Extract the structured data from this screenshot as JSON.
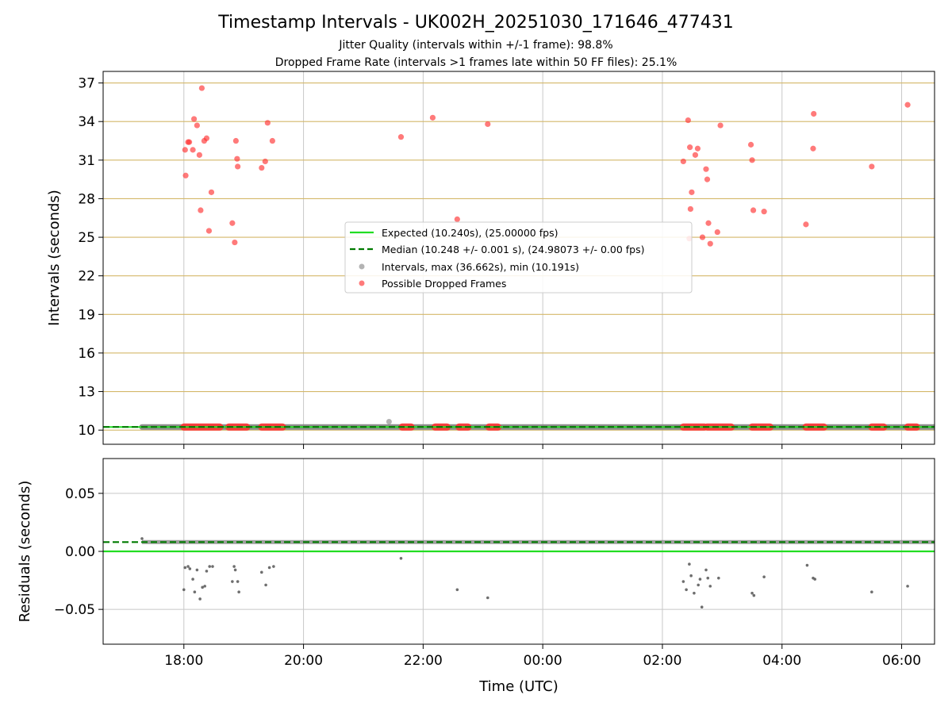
{
  "figure": {
    "title": "Timestamp Intervals - UK002H_20251030_171646_477431",
    "subtitle_jitter": "Jitter Quality (intervals within +/-1 frame): 98.8%",
    "subtitle_dropped": "Dropped Frame Rate (intervals >1 frames late within 50 FF files): 25.1%"
  },
  "colors": {
    "expected_line": "#22dd22",
    "median_line": "#007a00",
    "interval_points": "#808080",
    "dropped_points": "#ff3333",
    "hgrid_top": "#d4b86a",
    "grid": "#c8c8c8",
    "axis": "#000000"
  },
  "chart_data": [
    {
      "type": "scatter",
      "panel": "intervals",
      "ylabel": "Intervals (seconds)",
      "xlabel": "",
      "x_unit": "hours since 00:00 UTC (30/31 Oct 2025)",
      "xlim": [
        -7.35,
        6.55
      ],
      "ylim": [
        8.9,
        37.9
      ],
      "yticks": [
        "10",
        "13",
        "16",
        "19",
        "22",
        "25",
        "28",
        "31",
        "34",
        "37"
      ],
      "ytick_values": [
        10,
        13,
        16,
        19,
        22,
        25,
        28,
        31,
        34,
        37
      ],
      "xticks": [
        "18:00",
        "20:00",
        "22:00",
        "00:00",
        "02:00",
        "04:00",
        "06:00"
      ],
      "xtick_values": [
        -6,
        -4,
        -2,
        0,
        2,
        4,
        6
      ],
      "legend": {
        "position": "center",
        "entries": [
          "Expected (10.240s), (25.00000 fps)",
          "Median (10.248 +/- 0.001 s), (24.98073 +/- 0.00 fps)",
          "Intervals, max (36.662s), min (10.191s)",
          "Possible Dropped Frames"
        ]
      },
      "expected_interval": 10.24,
      "median_interval": 10.248,
      "interval_band": {
        "x_start": -6.7,
        "x_end": 6.55,
        "y": 10.24
      },
      "interval_outliers": [
        {
          "x": -2.57,
          "y": 10.66
        }
      ],
      "dropped_runs": [
        {
          "x_start": -6.0,
          "x_end": -5.4,
          "y": 10.24
        },
        {
          "x_start": -5.25,
          "x_end": -4.95,
          "y": 10.24
        },
        {
          "x_start": -4.7,
          "x_end": -4.35,
          "y": 10.24
        },
        {
          "x_start": -2.35,
          "x_end": -2.2,
          "y": 10.24
        },
        {
          "x_start": -1.8,
          "x_end": -1.6,
          "y": 10.24
        },
        {
          "x_start": -1.4,
          "x_end": -1.25,
          "y": 10.24
        },
        {
          "x_start": -0.9,
          "x_end": -0.75,
          "y": 10.24
        },
        {
          "x_start": 2.35,
          "x_end": 2.7,
          "y": 10.24
        },
        {
          "x_start": 2.75,
          "x_end": 3.15,
          "y": 10.24
        },
        {
          "x_start": 3.5,
          "x_end": 3.8,
          "y": 10.24
        },
        {
          "x_start": 4.4,
          "x_end": 4.7,
          "y": 10.24
        },
        {
          "x_start": 5.5,
          "x_end": 5.7,
          "y": 10.24
        },
        {
          "x_start": 6.1,
          "x_end": 6.25,
          "y": 10.24
        }
      ],
      "dropped_points": [
        {
          "x": -5.98,
          "y": 31.8
        },
        {
          "x": -5.97,
          "y": 29.8
        },
        {
          "x": -5.93,
          "y": 32.4
        },
        {
          "x": -5.91,
          "y": 32.4
        },
        {
          "x": -5.85,
          "y": 31.8
        },
        {
          "x": -5.83,
          "y": 34.2
        },
        {
          "x": -5.78,
          "y": 33.7
        },
        {
          "x": -5.74,
          "y": 31.4
        },
        {
          "x": -5.72,
          "y": 27.1
        },
        {
          "x": -5.7,
          "y": 36.6
        },
        {
          "x": -5.66,
          "y": 32.5
        },
        {
          "x": -5.62,
          "y": 32.7
        },
        {
          "x": -5.58,
          "y": 25.5
        },
        {
          "x": -5.54,
          "y": 28.5
        },
        {
          "x": -5.19,
          "y": 26.1
        },
        {
          "x": -5.15,
          "y": 24.6
        },
        {
          "x": -5.13,
          "y": 32.5
        },
        {
          "x": -5.11,
          "y": 31.1
        },
        {
          "x": -5.1,
          "y": 30.5
        },
        {
          "x": -4.7,
          "y": 30.4
        },
        {
          "x": -4.64,
          "y": 30.9
        },
        {
          "x": -4.6,
          "y": 33.9
        },
        {
          "x": -4.52,
          "y": 32.5
        },
        {
          "x": -2.37,
          "y": 32.8
        },
        {
          "x": -1.84,
          "y": 34.3
        },
        {
          "x": -1.43,
          "y": 26.4
        },
        {
          "x": -0.92,
          "y": 33.8
        },
        {
          "x": 2.35,
          "y": 30.9
        },
        {
          "x": 2.43,
          "y": 34.1
        },
        {
          "x": 2.46,
          "y": 32.0
        },
        {
          "x": 2.47,
          "y": 27.2
        },
        {
          "x": 2.49,
          "y": 28.5
        },
        {
          "x": 2.55,
          "y": 31.4
        },
        {
          "x": 2.59,
          "y": 31.9
        },
        {
          "x": 2.67,
          "y": 25.0
        },
        {
          "x": 2.73,
          "y": 30.3
        },
        {
          "x": 2.75,
          "y": 29.5
        },
        {
          "x": 2.77,
          "y": 26.1
        },
        {
          "x": 2.8,
          "y": 24.5
        },
        {
          "x": 2.92,
          "y": 25.4
        },
        {
          "x": 2.97,
          "y": 33.7
        },
        {
          "x": 2.45,
          "y": 24.9
        },
        {
          "x": 3.48,
          "y": 32.2
        },
        {
          "x": 3.5,
          "y": 31.0
        },
        {
          "x": 3.52,
          "y": 27.1
        },
        {
          "x": 3.7,
          "y": 27.0
        },
        {
          "x": 4.4,
          "y": 26.0
        },
        {
          "x": 4.52,
          "y": 31.9
        },
        {
          "x": 4.53,
          "y": 34.6
        },
        {
          "x": 5.5,
          "y": 30.5
        },
        {
          "x": 6.1,
          "y": 35.3
        }
      ]
    },
    {
      "type": "scatter",
      "panel": "residuals",
      "ylabel": "Residuals (seconds)",
      "xlabel": "Time (UTC)",
      "xlim": [
        -7.35,
        6.55
      ],
      "ylim": [
        -0.08,
        0.08
      ],
      "yticks": [
        "0.05",
        "0.00",
        "−0.05"
      ],
      "ytick_values": [
        0.05,
        0.0,
        -0.05
      ],
      "xticks": [
        "18:00",
        "20:00",
        "22:00",
        "00:00",
        "02:00",
        "04:00",
        "06:00"
      ],
      "xtick_values": [
        -6,
        -4,
        -2,
        0,
        2,
        4,
        6
      ],
      "expected_residual": 0.0,
      "median_residual": 0.008,
      "residual_band": {
        "x_start": -6.7,
        "x_end": 6.55,
        "y": 0.008
      },
      "residual_points": [
        {
          "x": -6.7,
          "y": 0.011
        },
        {
          "x": -6.0,
          "y": -0.033
        },
        {
          "x": -5.98,
          "y": -0.014
        },
        {
          "x": -5.93,
          "y": -0.013
        },
        {
          "x": -5.9,
          "y": -0.015
        },
        {
          "x": -5.85,
          "y": -0.024
        },
        {
          "x": -5.82,
          "y": -0.035
        },
        {
          "x": -5.78,
          "y": -0.016
        },
        {
          "x": -5.73,
          "y": -0.041
        },
        {
          "x": -5.69,
          "y": -0.031
        },
        {
          "x": -5.65,
          "y": -0.03
        },
        {
          "x": -5.62,
          "y": -0.017
        },
        {
          "x": -5.57,
          "y": -0.013
        },
        {
          "x": -5.52,
          "y": -0.013
        },
        {
          "x": -5.19,
          "y": -0.026
        },
        {
          "x": -5.16,
          "y": -0.013
        },
        {
          "x": -5.14,
          "y": -0.016
        },
        {
          "x": -5.1,
          "y": -0.026
        },
        {
          "x": -5.08,
          "y": -0.035
        },
        {
          "x": -4.7,
          "y": -0.018
        },
        {
          "x": -4.63,
          "y": -0.029
        },
        {
          "x": -4.57,
          "y": -0.014
        },
        {
          "x": -4.5,
          "y": -0.013
        },
        {
          "x": -2.37,
          "y": -0.006
        },
        {
          "x": -1.43,
          "y": -0.033
        },
        {
          "x": -0.92,
          "y": -0.04
        },
        {
          "x": 2.35,
          "y": -0.026
        },
        {
          "x": 2.4,
          "y": -0.033
        },
        {
          "x": 2.45,
          "y": -0.011
        },
        {
          "x": 2.48,
          "y": -0.021
        },
        {
          "x": 2.53,
          "y": -0.036
        },
        {
          "x": 2.6,
          "y": -0.029
        },
        {
          "x": 2.63,
          "y": -0.024
        },
        {
          "x": 2.66,
          "y": -0.048
        },
        {
          "x": 2.73,
          "y": -0.016
        },
        {
          "x": 2.76,
          "y": -0.023
        },
        {
          "x": 2.8,
          "y": -0.03
        },
        {
          "x": 2.94,
          "y": -0.023
        },
        {
          "x": 3.5,
          "y": -0.036
        },
        {
          "x": 3.53,
          "y": -0.038
        },
        {
          "x": 3.7,
          "y": -0.022
        },
        {
          "x": 4.42,
          "y": -0.012
        },
        {
          "x": 4.52,
          "y": -0.023
        },
        {
          "x": 4.55,
          "y": -0.024
        },
        {
          "x": 5.5,
          "y": -0.035
        },
        {
          "x": 6.1,
          "y": -0.03
        }
      ]
    }
  ]
}
